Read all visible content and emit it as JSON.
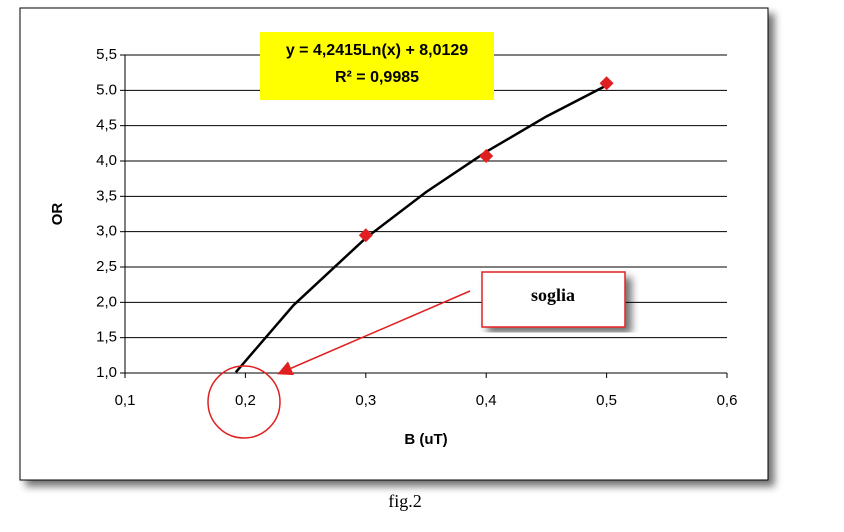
{
  "chart_data": {
    "type": "scatter",
    "xlabel": "B (uT)",
    "ylabel": "OR",
    "series": [
      {
        "color": "#e02020",
        "x": [
          0.3,
          0.4,
          0.5
        ],
        "values": [
          2.95,
          4.07,
          5.1
        ]
      }
    ],
    "trendline": {
      "equation": "y = 4,2415Ln(x) + 8,0129",
      "r2": "R² = 0,9985",
      "color": "#000000",
      "x": [
        0.192,
        0.24,
        0.3,
        0.35,
        0.4,
        0.45,
        0.5
      ],
      "values": [
        1.01,
        1.96,
        2.91,
        3.56,
        4.13,
        4.63,
        5.07
      ]
    },
    "xlim": [
      0.1,
      0.6
    ],
    "xticks": [
      {
        "value": 0.1,
        "label": "0,1"
      },
      {
        "value": 0.2,
        "label": "0,2"
      },
      {
        "value": 0.3,
        "label": "0,3"
      },
      {
        "value": 0.4,
        "label": "0,4"
      },
      {
        "value": 0.5,
        "label": "0,5"
      },
      {
        "value": 0.6,
        "label": "0,6"
      }
    ],
    "ylim": [
      1.0,
      5.5
    ],
    "yticks": [
      {
        "value": 1.0,
        "label": "1,0"
      },
      {
        "value": 1.5,
        "label": "1,5"
      },
      {
        "value": 2.0,
        "label": "2,0"
      },
      {
        "value": 2.5,
        "label": "2,5"
      },
      {
        "value": 3.0,
        "label": "3,0"
      },
      {
        "value": 3.5,
        "label": "3,5"
      },
      {
        "value": 4.0,
        "label": "4,0"
      },
      {
        "value": 4.5,
        "label": "4,5"
      },
      {
        "value": 5.0,
        "label": "5.0"
      },
      {
        "value": 5.5,
        "label": "5,5"
      }
    ],
    "grid": true,
    "annotation": "soglia",
    "caption": "fig.2"
  }
}
